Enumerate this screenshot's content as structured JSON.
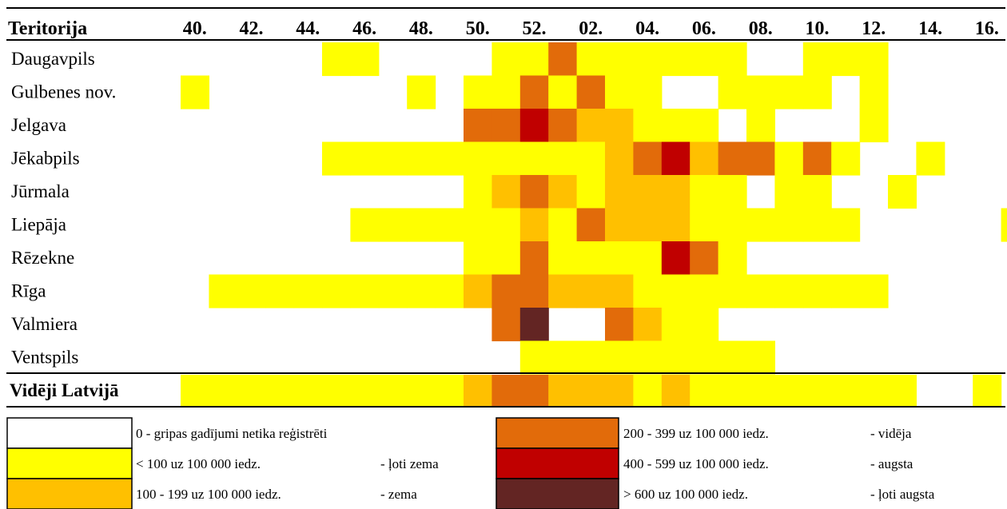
{
  "chart_data": {
    "type": "heatmap",
    "header_label": "Teritorija",
    "x_ticks": [
      "40.",
      "42.",
      "44.",
      "46.",
      "48.",
      "50.",
      "52.",
      "02.",
      "04.",
      "06.",
      "08.",
      "10.",
      "12.",
      "14.",
      "16."
    ],
    "levels": [
      {
        "code": 0,
        "color": "#ffffff",
        "range": "0 - gripas gadījumi netika reģistrēti",
        "label": ""
      },
      {
        "code": 1,
        "color": "#ffff00",
        "range": "< 100 uz 100 000 iedz.",
        "label": "- ļoti zema"
      },
      {
        "code": 2,
        "color": "#ffc000",
        "range": "100 - 199 uz 100 000 iedz.",
        "label": "- zema"
      },
      {
        "code": 3,
        "color": "#e26b0a",
        "range": "200 - 399 uz 100 000 iedz.",
        "label": "- vidēja"
      },
      {
        "code": 4,
        "color": "#c00000",
        "range": "400 - 599 uz 100 000 iedz.",
        "label": "- augsta"
      },
      {
        "code": 5,
        "color": "#632523",
        "range": "> 600 uz 100 000 iedz.",
        "label": "- ļoti augsta"
      }
    ],
    "rows": [
      {
        "name": "Daugavpils",
        "values": [
          0,
          0,
          0,
          0,
          0,
          1,
          1,
          0,
          0,
          0,
          0,
          1,
          1,
          3,
          1,
          1,
          1,
          1,
          1,
          1,
          0,
          0,
          1,
          1,
          1,
          0,
          0,
          0,
          0,
          0,
          0
        ]
      },
      {
        "name": "Gulbenes nov.",
        "values": [
          1,
          0,
          0,
          0,
          0,
          0,
          0,
          0,
          1,
          0,
          1,
          1,
          3,
          1,
          3,
          1,
          1,
          0,
          0,
          1,
          1,
          1,
          1,
          0,
          1,
          0,
          0,
          0,
          0,
          0,
          0
        ]
      },
      {
        "name": "Jelgava",
        "values": [
          0,
          0,
          0,
          0,
          0,
          0,
          0,
          0,
          0,
          0,
          3,
          3,
          4,
          3,
          2,
          2,
          1,
          1,
          1,
          0,
          1,
          0,
          0,
          0,
          1,
          0,
          0,
          0,
          0,
          0,
          0
        ]
      },
      {
        "name": "Jēkabpils",
        "values": [
          0,
          0,
          0,
          0,
          0,
          1,
          1,
          1,
          1,
          1,
          1,
          1,
          1,
          1,
          1,
          2,
          3,
          4,
          2,
          3,
          3,
          1,
          3,
          1,
          0,
          0,
          1,
          0,
          0,
          0,
          0
        ]
      },
      {
        "name": "Jūrmala",
        "values": [
          0,
          0,
          0,
          0,
          0,
          0,
          0,
          0,
          0,
          0,
          1,
          2,
          3,
          2,
          1,
          2,
          2,
          2,
          1,
          1,
          0,
          1,
          1,
          0,
          0,
          1,
          0,
          0,
          0,
          0,
          0
        ]
      },
      {
        "name": "Liepāja",
        "values": [
          0,
          0,
          0,
          0,
          0,
          0,
          1,
          1,
          1,
          1,
          1,
          1,
          2,
          1,
          3,
          2,
          2,
          2,
          1,
          1,
          1,
          1,
          1,
          1,
          0,
          0,
          0,
          0,
          0,
          1,
          0
        ]
      },
      {
        "name": "Rēzekne",
        "values": [
          0,
          0,
          0,
          0,
          0,
          0,
          0,
          0,
          0,
          0,
          1,
          1,
          3,
          1,
          1,
          1,
          1,
          4,
          3,
          1,
          0,
          0,
          0,
          0,
          0,
          0,
          0,
          0,
          0,
          0,
          0
        ]
      },
      {
        "name": "Rīga",
        "values": [
          0,
          1,
          1,
          1,
          1,
          1,
          1,
          1,
          1,
          1,
          2,
          3,
          3,
          2,
          2,
          2,
          1,
          1,
          1,
          1,
          1,
          1,
          1,
          1,
          1,
          0,
          0,
          0,
          0,
          0,
          0
        ]
      },
      {
        "name": "Valmiera",
        "values": [
          0,
          0,
          0,
          0,
          0,
          0,
          0,
          0,
          0,
          0,
          0,
          3,
          5,
          0,
          0,
          3,
          2,
          1,
          1,
          0,
          0,
          0,
          0,
          0,
          0,
          0,
          0,
          0,
          0,
          0,
          0
        ]
      },
      {
        "name": "Ventspils",
        "values": [
          0,
          0,
          0,
          0,
          0,
          0,
          0,
          0,
          0,
          0,
          0,
          0,
          1,
          1,
          1,
          1,
          1,
          1,
          1,
          1,
          1,
          0,
          0,
          0,
          0,
          0,
          0,
          0,
          0,
          0,
          0
        ]
      }
    ],
    "average_row": {
      "name": "Vidēji Latvijā",
      "values": [
        1,
        1,
        1,
        1,
        1,
        1,
        1,
        1,
        1,
        1,
        2,
        3,
        3,
        2,
        2,
        2,
        1,
        2,
        1,
        1,
        1,
        1,
        1,
        1,
        1,
        1,
        0,
        0,
        1,
        0,
        0
      ]
    }
  }
}
